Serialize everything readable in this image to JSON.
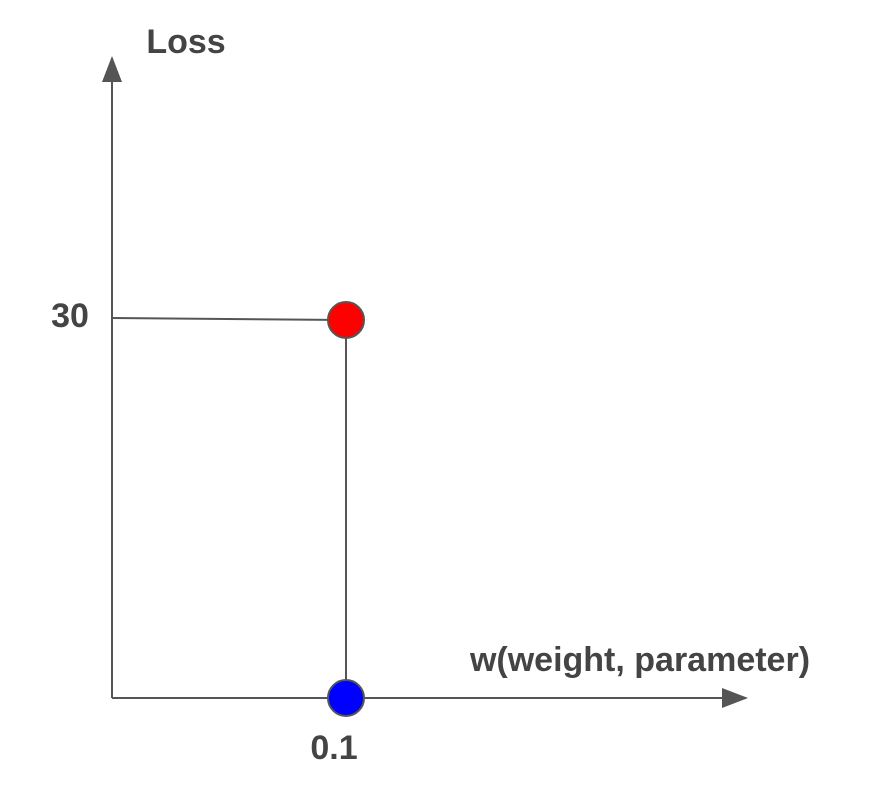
{
  "y_axis": {
    "label": "Loss",
    "tick": "30"
  },
  "x_axis": {
    "label": "w(weight, parameter)",
    "tick": "0.1"
  }
}
